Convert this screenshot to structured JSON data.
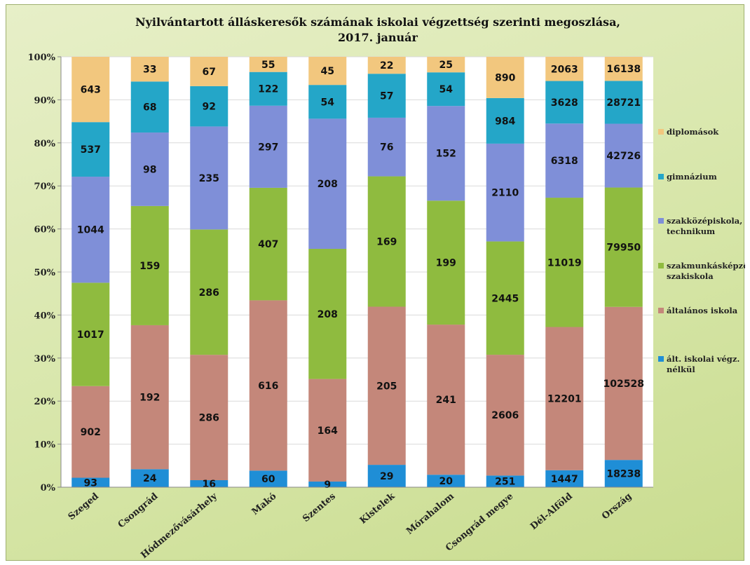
{
  "chart_data": {
    "type": "bar",
    "stacked": "percent",
    "title_lines": [
      "Nyilvántartott álláskeresők számának iskolai végzettség szerinti megoszlása,",
      "2017. január"
    ],
    "categories": [
      "Szeged",
      "Csongrád",
      "Hódmezővásárhely",
      "Makó",
      "Szentes",
      "Kistelek",
      "Mórahalom",
      "Csongrád megye",
      "Dél-Alföld",
      "Ország"
    ],
    "y_ticks": [
      "0%",
      "10%",
      "20%",
      "30%",
      "40%",
      "50%",
      "60%",
      "70%",
      "80%",
      "90%",
      "100%"
    ],
    "ylim": [
      0,
      100
    ],
    "series": [
      {
        "name": "ált. iskolai végz. nélkül",
        "color": "#1f8ed6",
        "values": [
          93,
          24,
          16,
          60,
          9,
          29,
          20,
          251,
          1447,
          18238
        ]
      },
      {
        "name": "általános iskola",
        "color": "#c4877a",
        "values": [
          902,
          192,
          286,
          616,
          164,
          205,
          241,
          2606,
          12201,
          102528
        ]
      },
      {
        "name": "szakmunkásképző, szakiskola",
        "color": "#8fbb3f",
        "values": [
          1017,
          159,
          286,
          407,
          208,
          169,
          199,
          2445,
          11019,
          79950
        ]
      },
      {
        "name": "szakközépiskola, technikum",
        "color": "#7f8fd8",
        "values": [
          1044,
          98,
          235,
          297,
          208,
          76,
          152,
          2110,
          6318,
          42726
        ]
      },
      {
        "name": "gimnázium",
        "color": "#24a6c8",
        "values": [
          537,
          68,
          92,
          122,
          54,
          57,
          54,
          984,
          3628,
          28721
        ]
      },
      {
        "name": "diplomások",
        "color": "#f2c77e",
        "values": [
          643,
          33,
          67,
          55,
          45,
          22,
          25,
          890,
          2063,
          16138
        ]
      }
    ],
    "legend": {
      "position": "right",
      "order_top_to_bottom": [
        5,
        4,
        3,
        2,
        1,
        0
      ],
      "entries": [
        [
          "diplomások"
        ],
        [
          "gimnázium"
        ],
        [
          "szakközépiskola,",
          "technikum"
        ],
        [
          "szakmunkásképző,",
          "szakiskola"
        ],
        [
          "általános iskola"
        ],
        [
          "ált. iskolai végz.",
          "nélkül"
        ]
      ]
    },
    "grid": true
  }
}
